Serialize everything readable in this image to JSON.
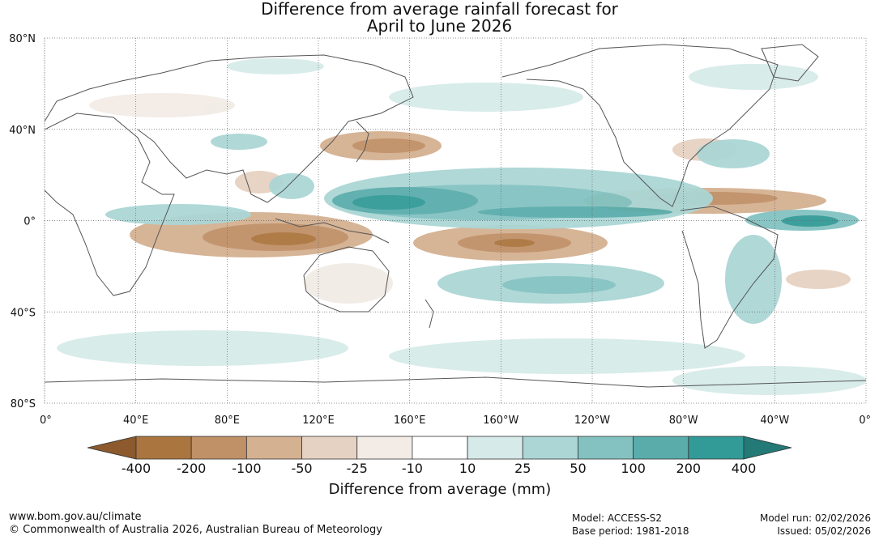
{
  "title": {
    "line1": "Difference from average rainfall forecast for",
    "line2": "April to June 2026"
  },
  "axes": {
    "lat_labels": [
      "80°N",
      "40°N",
      "0°",
      "40°S",
      "80°S"
    ],
    "lat_values": [
      80,
      40,
      0,
      -40,
      -80
    ],
    "lon_labels": [
      "0°",
      "40°E",
      "80°E",
      "120°E",
      "160°E",
      "160°W",
      "120°W",
      "80°W",
      "40°W",
      "0°"
    ],
    "lon_values": [
      0,
      40,
      80,
      120,
      160,
      200,
      240,
      280,
      320,
      360
    ]
  },
  "colorbar": {
    "ticks": [
      "-400",
      "-200",
      "-100",
      "-50",
      "-25",
      "-10",
      "10",
      "25",
      "50",
      "100",
      "200",
      "400"
    ],
    "colors": [
      "#8c5a2c",
      "#ab753f",
      "#c09067",
      "#d4b191",
      "#e6d2c2",
      "#f2ebe6",
      "#ffffff",
      "#d6ebe9",
      "#abd6d5",
      "#83c2c1",
      "#5aacab",
      "#329a97",
      "#237a77"
    ],
    "label": "Difference from average (mm)"
  },
  "footer": {
    "url": "www.bom.gov.au/climate",
    "copyright": "© Commonwealth of Australia 2026, Australian Bureau of Meteorology",
    "model": "Model: ACCESS-S2",
    "base_period": "Base period: 1981-2018",
    "model_run": "Model run: 02/02/2026",
    "issued": "Issued: 05/02/2026"
  },
  "icon_names": [
    "world-coastline-icon"
  ]
}
